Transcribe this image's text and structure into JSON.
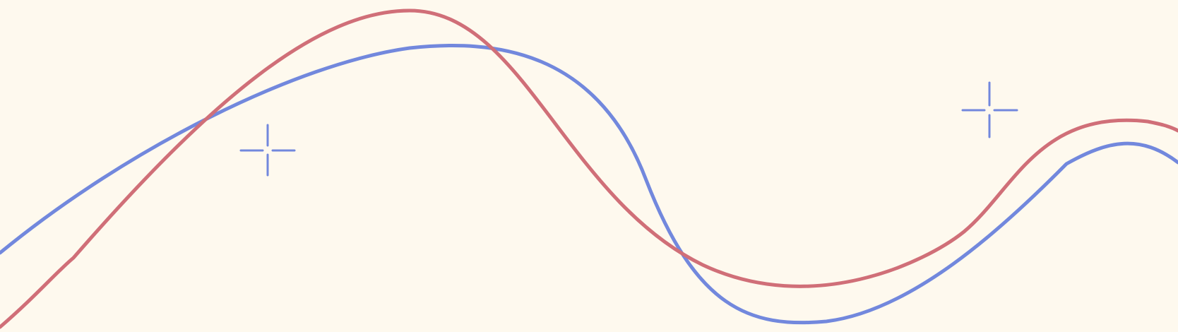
{
  "background_color": "#FEF9EE",
  "lines": {
    "red": {
      "color": "#D06F78"
    },
    "blue": {
      "color": "#7288DD"
    }
  },
  "icons": {
    "sparkle_left": {
      "name": "sparkle-icon",
      "color": "#7288DD"
    },
    "sparkle_right": {
      "name": "sparkle-icon",
      "color": "#7288DD"
    }
  }
}
